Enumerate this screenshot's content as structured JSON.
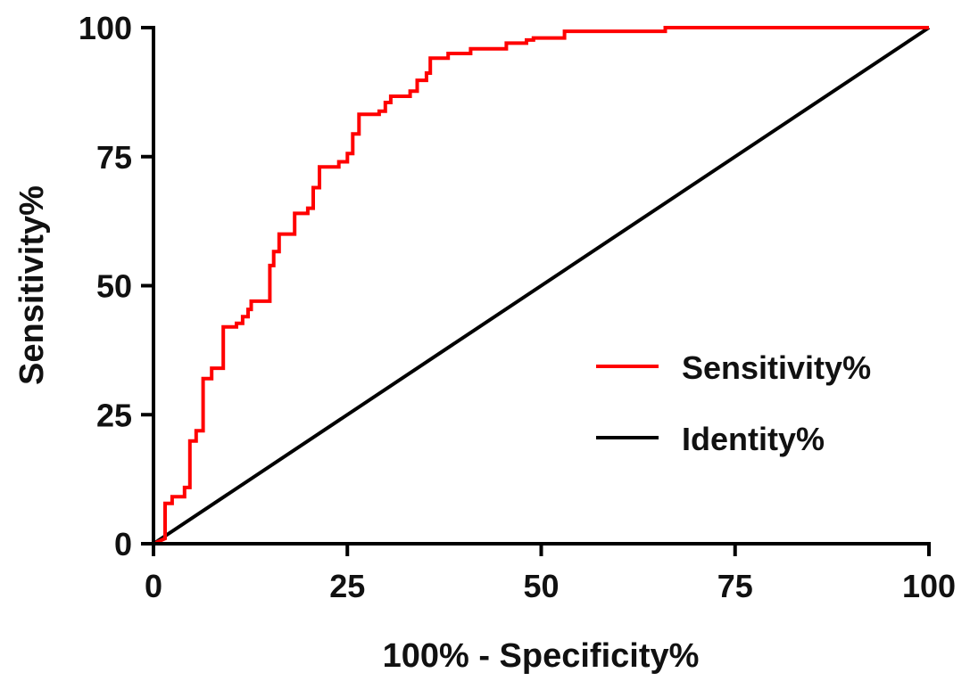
{
  "chart_data": {
    "type": "line",
    "title": "",
    "xlabel": "100% - Specificity%",
    "ylabel": "Sensitivity%",
    "xlim": [
      0,
      100
    ],
    "ylim": [
      0,
      100
    ],
    "xticks": [
      "0",
      "25",
      "50",
      "75",
      "100"
    ],
    "yticks": [
      "0",
      "25",
      "50",
      "75",
      "100"
    ],
    "xtick_values": [
      0,
      25,
      50,
      75,
      100
    ],
    "ytick_values": [
      0,
      25,
      50,
      75,
      100
    ],
    "grid": false,
    "legend_position": "center-right",
    "series": [
      {
        "name": "Sensitivity%",
        "color": "#ff0000",
        "step": true,
        "points": [
          [
            0,
            0
          ],
          [
            1.5,
            1
          ],
          [
            1.5,
            7.8
          ],
          [
            2.4,
            7.8
          ],
          [
            2.4,
            9.1
          ],
          [
            4,
            9.1
          ],
          [
            4,
            10.9
          ],
          [
            4.7,
            10.9
          ],
          [
            4.7,
            19.9
          ],
          [
            5.5,
            19.9
          ],
          [
            5.5,
            21.9
          ],
          [
            6.4,
            21.9
          ],
          [
            6.4,
            32
          ],
          [
            7.5,
            32
          ],
          [
            7.5,
            34
          ],
          [
            9,
            34
          ],
          [
            9,
            42
          ],
          [
            10.7,
            42
          ],
          [
            10.7,
            42.7
          ],
          [
            11.5,
            42.7
          ],
          [
            11.5,
            44
          ],
          [
            12.2,
            44
          ],
          [
            12.2,
            45.4
          ],
          [
            12.6,
            45.4
          ],
          [
            12.6,
            47
          ],
          [
            15,
            47
          ],
          [
            15,
            53.9
          ],
          [
            15.5,
            53.9
          ],
          [
            15.5,
            56.6
          ],
          [
            16.2,
            56.6
          ],
          [
            16.2,
            60
          ],
          [
            18.2,
            60
          ],
          [
            18.2,
            64
          ],
          [
            19.9,
            64
          ],
          [
            19.9,
            65
          ],
          [
            20.6,
            65
          ],
          [
            20.6,
            69
          ],
          [
            21.4,
            69
          ],
          [
            21.4,
            73
          ],
          [
            23.9,
            73
          ],
          [
            23.9,
            74
          ],
          [
            25,
            74
          ],
          [
            25,
            75.6
          ],
          [
            25.7,
            75.6
          ],
          [
            25.7,
            79.4
          ],
          [
            26.5,
            79.4
          ],
          [
            26.5,
            83.2
          ],
          [
            29.1,
            83.2
          ],
          [
            29.1,
            83.8
          ],
          [
            29.9,
            83.8
          ],
          [
            29.9,
            85.5
          ],
          [
            30.6,
            85.5
          ],
          [
            30.6,
            86.7
          ],
          [
            33.1,
            86.7
          ],
          [
            33.1,
            87.7
          ],
          [
            34,
            87.7
          ],
          [
            34,
            89.8
          ],
          [
            35.2,
            89.8
          ],
          [
            35.2,
            91.2
          ],
          [
            35.7,
            91.2
          ],
          [
            35.7,
            94.1
          ],
          [
            38,
            94.1
          ],
          [
            38,
            95
          ],
          [
            40.9,
            95
          ],
          [
            40.9,
            95.9
          ],
          [
            45.5,
            95.9
          ],
          [
            45.5,
            97
          ],
          [
            48.1,
            97
          ],
          [
            48.1,
            97.6
          ],
          [
            49,
            97.6
          ],
          [
            49,
            98
          ],
          [
            53,
            98
          ],
          [
            53,
            99.3
          ],
          [
            66,
            99.3
          ],
          [
            66,
            100
          ],
          [
            100,
            100
          ]
        ]
      },
      {
        "name": "Identity%",
        "color": "#000000",
        "step": false,
        "points": [
          [
            0,
            0
          ],
          [
            100,
            100
          ]
        ]
      }
    ]
  }
}
